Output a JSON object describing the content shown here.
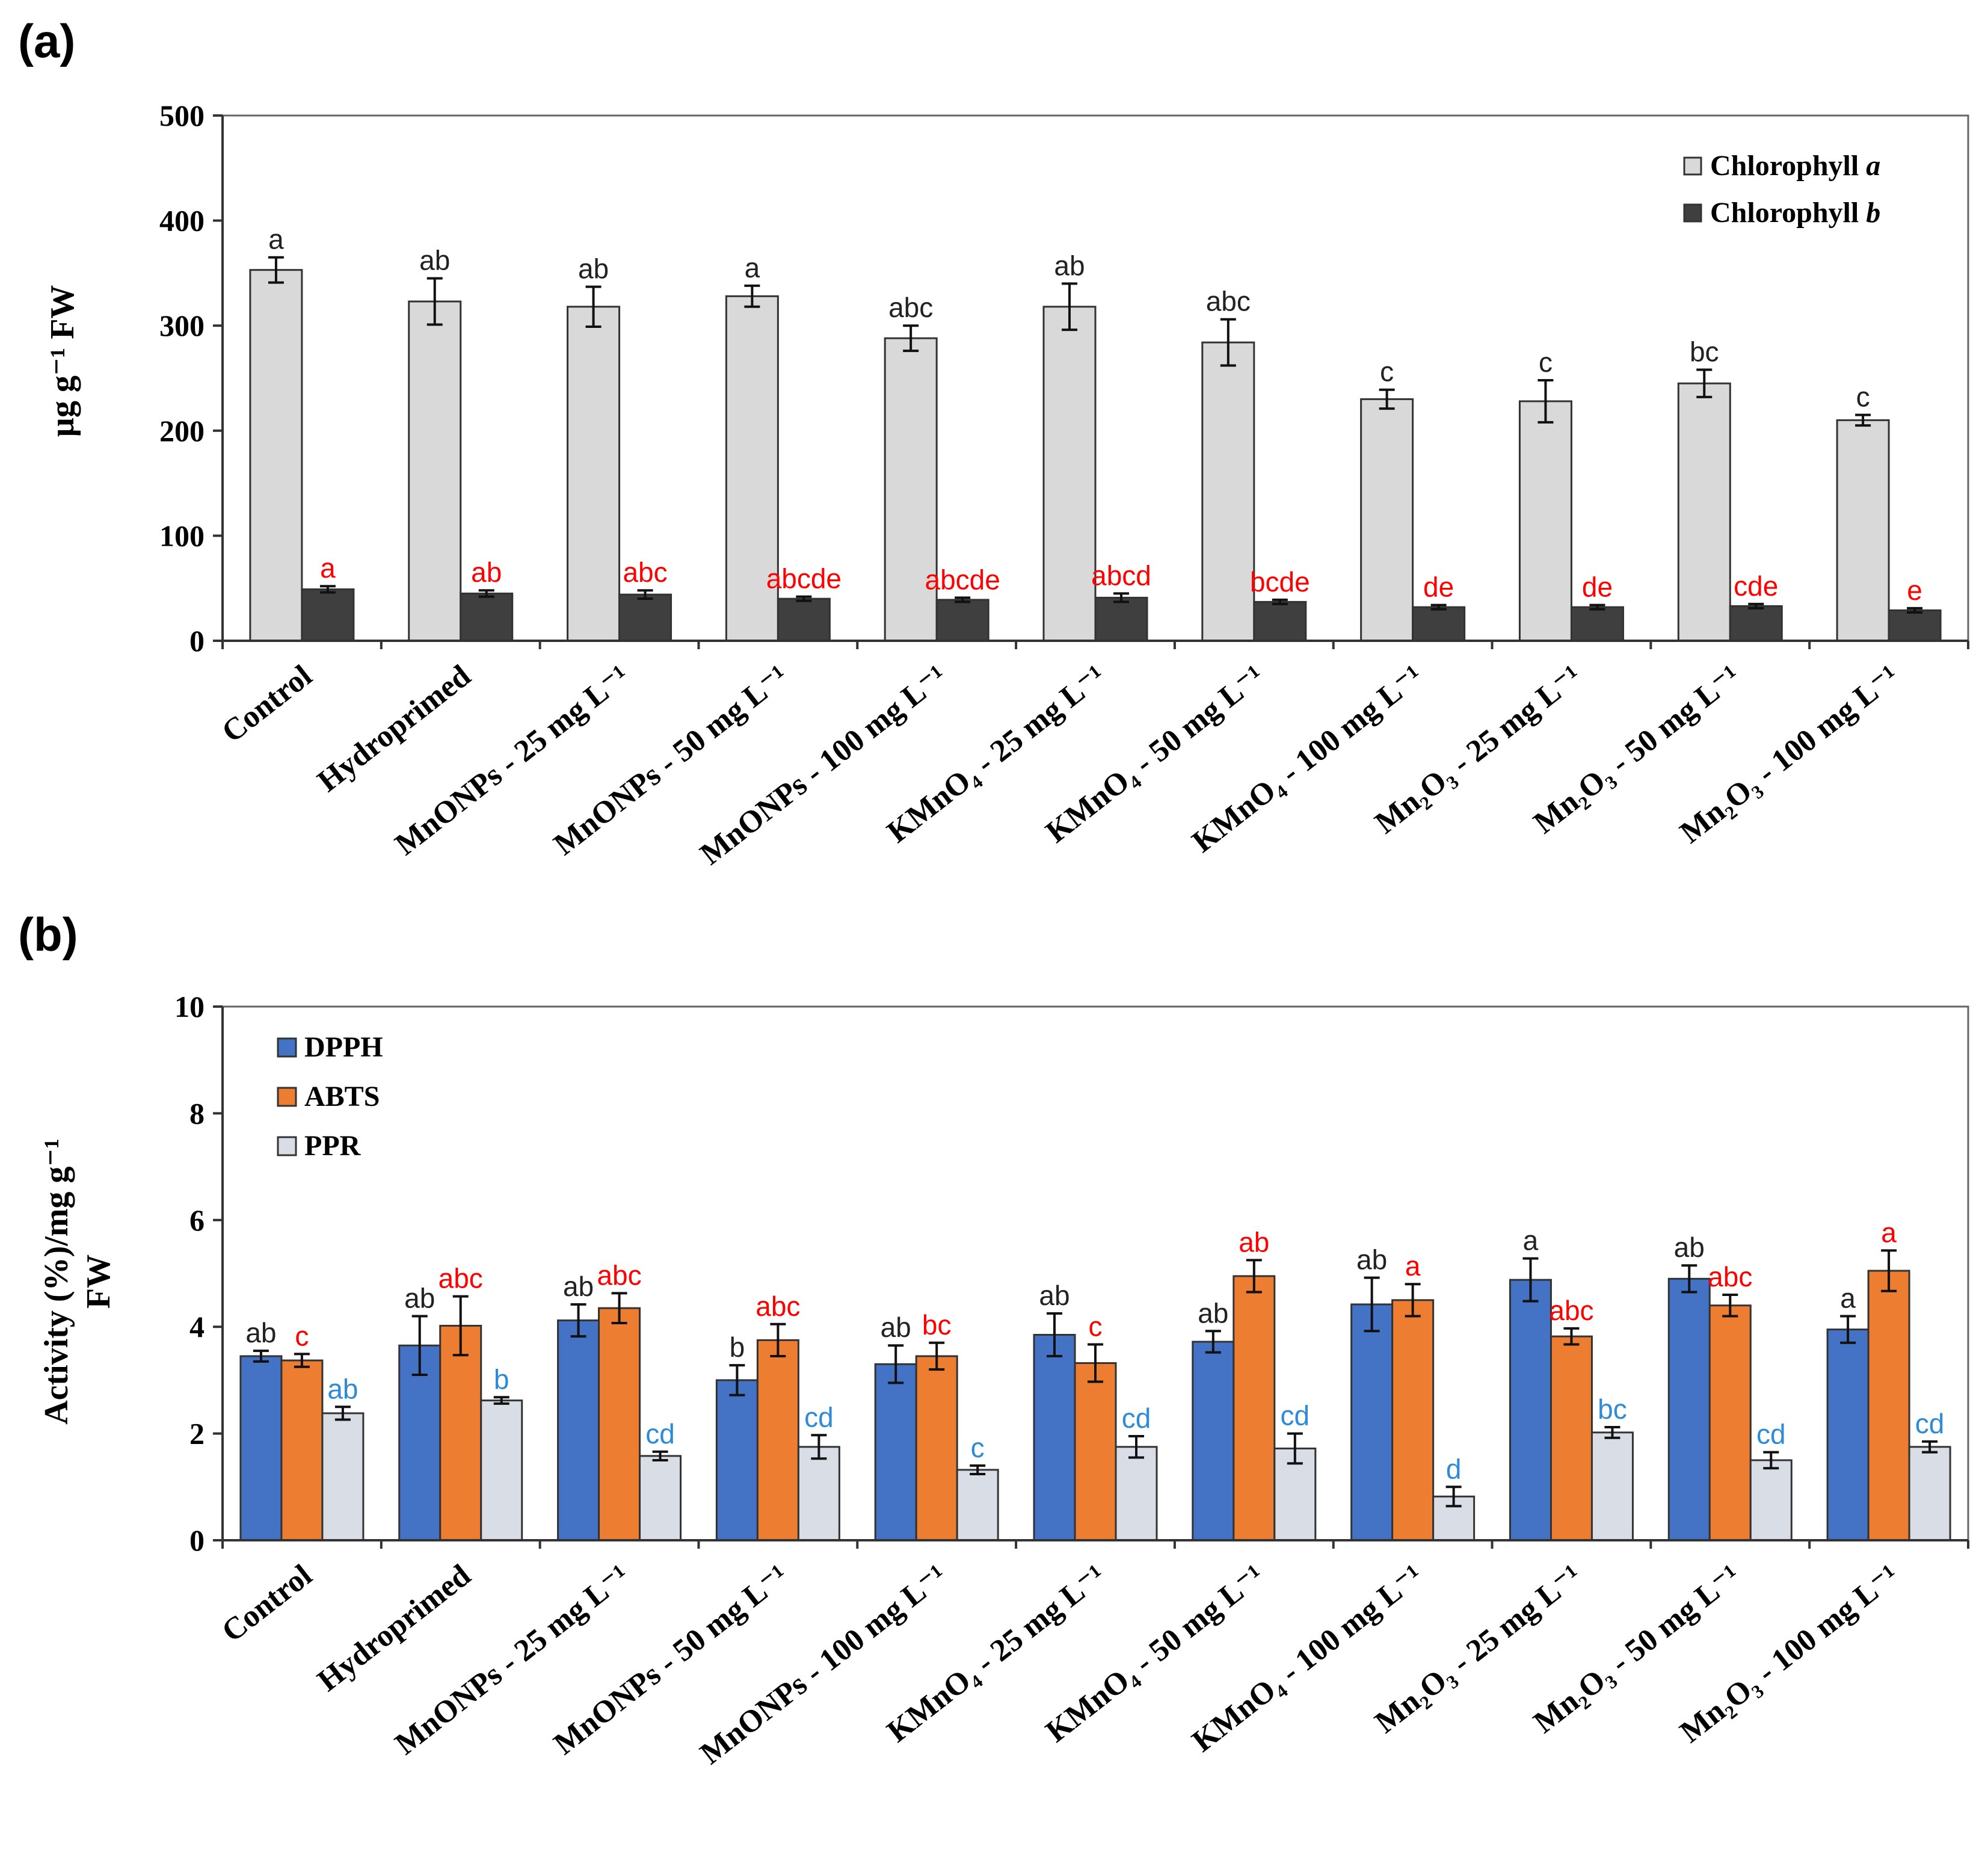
{
  "colors": {
    "chl_a": "#d9d9d9",
    "chl_b": "#3f3f3f",
    "dpph": "#4472c4",
    "abts": "#ed7d31",
    "ppr": "#d9dde6",
    "letter_black": "#222222",
    "letter_red": "#ff0000",
    "letter_blue": "#2e8bd8"
  },
  "categories": [
    "Control",
    "Hydroprimed",
    "MnONPs - 25 mg L⁻¹",
    "MnONPs - 50 mg L⁻¹",
    "MnONPs - 100 mg L⁻¹",
    "KMnO₄ - 25 mg L⁻¹",
    "KMnO₄ - 50 mg L⁻¹",
    "KMnO₄ - 100 mg L⁻¹",
    "Mn₂O₃ - 25 mg L⁻¹",
    "Mn₂O₃ - 50 mg L⁻¹",
    "Mn₂O₃ - 100 mg L⁻¹"
  ],
  "chart_data": [
    {
      "panel_label": "(a)",
      "type": "bar",
      "ylabel": "µg g⁻¹ FW",
      "ylim": [
        0,
        500
      ],
      "yticks": [
        0,
        100,
        200,
        300,
        400,
        500
      ],
      "legend_position": "top-right",
      "series": [
        {
          "name": "Chlorophyll a",
          "legend_name": "Chlorophyll ",
          "legend_italic": "a",
          "color_key": "chl_a",
          "letter_color_key": "letter_black",
          "values": [
            353,
            323,
            318,
            328,
            288,
            318,
            284,
            230,
            228,
            245,
            210
          ],
          "errors": [
            12,
            22,
            19,
            10,
            12,
            22,
            22,
            9,
            20,
            13,
            5
          ],
          "letters": [
            "a",
            "ab",
            "ab",
            "a",
            "abc",
            "ab",
            "abc",
            "c",
            "c",
            "bc",
            "c"
          ]
        },
        {
          "name": "Chlorophyll b",
          "legend_name": "Chlorophyll ",
          "legend_italic": "b",
          "color_key": "chl_b",
          "letter_color_key": "letter_red",
          "values": [
            49,
            45,
            44,
            40,
            39,
            41,
            37,
            32,
            32,
            33,
            29
          ],
          "errors": [
            3,
            3,
            4,
            2,
            2,
            4,
            2,
            2,
            2,
            2,
            2
          ],
          "letters": [
            "a",
            "ab",
            "abc",
            "abcde",
            "abcde",
            "abcd",
            "bcde",
            "de",
            "de",
            "cde",
            "e"
          ]
        }
      ]
    },
    {
      "panel_label": "(b)",
      "type": "bar",
      "ylabel_line1": "Activity (%)/mg g⁻¹",
      "ylabel_line2": "FW",
      "ylim": [
        0,
        10
      ],
      "yticks": [
        0,
        2,
        4,
        6,
        8,
        10
      ],
      "legend_position": "top-left",
      "series": [
        {
          "name": "DPPH",
          "color_key": "dpph",
          "letter_color_key": "letter_black",
          "values": [
            3.45,
            3.65,
            4.12,
            3.0,
            3.3,
            3.85,
            3.72,
            4.42,
            4.88,
            4.9,
            3.95
          ],
          "errors": [
            0.1,
            0.55,
            0.3,
            0.28,
            0.35,
            0.4,
            0.2,
            0.5,
            0.4,
            0.25,
            0.25
          ],
          "letters": [
            "ab",
            "ab",
            "ab",
            "b",
            "ab",
            "ab",
            "ab",
            "ab",
            "a",
            "ab",
            "a"
          ]
        },
        {
          "name": "ABTS",
          "color_key": "abts",
          "letter_color_key": "letter_red",
          "values": [
            3.37,
            4.02,
            4.35,
            3.75,
            3.45,
            3.32,
            4.95,
            4.5,
            3.82,
            4.4,
            5.05
          ],
          "errors": [
            0.12,
            0.55,
            0.28,
            0.3,
            0.25,
            0.35,
            0.3,
            0.3,
            0.15,
            0.2,
            0.38
          ],
          "letters": [
            "c",
            "abc",
            "abc",
            "abc",
            "bc",
            "c",
            "ab",
            "a",
            "abc",
            "abc",
            "a"
          ]
        },
        {
          "name": "PPR",
          "color_key": "ppr",
          "letter_color_key": "letter_blue",
          "values": [
            2.38,
            2.62,
            1.58,
            1.75,
            1.32,
            1.75,
            1.72,
            0.82,
            2.02,
            1.5,
            1.75
          ],
          "errors": [
            0.12,
            0.06,
            0.08,
            0.22,
            0.08,
            0.2,
            0.28,
            0.18,
            0.1,
            0.15,
            0.1
          ],
          "letters": [
            "ab",
            "b",
            "cd",
            "cd",
            "c",
            "cd",
            "cd",
            "d",
            "bc",
            "cd",
            "cd"
          ]
        }
      ]
    }
  ]
}
